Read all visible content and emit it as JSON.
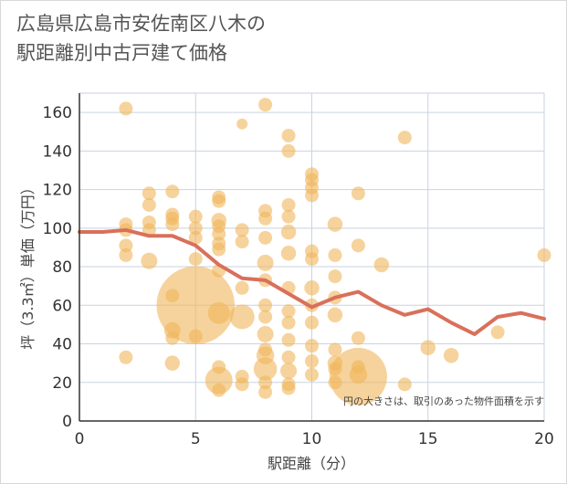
{
  "title_line1": "広島県広島市安佐南区八木の",
  "title_line2": "駅距離別中古戸建て価格",
  "colors": {
    "bubble": "#f0b55a",
    "line": "#d9705a",
    "grid": "#c9d3e0",
    "axis": "#333333"
  },
  "chart_data": {
    "type": "scatter",
    "title": "広島県広島市安佐南区八木の駅距離別中古戸建て価格",
    "xlabel": "駅距離（分）",
    "ylabel": "坪（3.3㎡）単価（万円）",
    "xlim": [
      0,
      20
    ],
    "ylim": [
      0,
      170
    ],
    "xticks": [
      0,
      5,
      10,
      15,
      20
    ],
    "yticks": [
      0,
      20,
      40,
      60,
      80,
      100,
      120,
      140,
      160
    ],
    "grid": true,
    "note": "円の大きさは、取引のあった物件面積を示す",
    "series": [
      {
        "kind": "bubble",
        "points": [
          {
            "x": 2,
            "y": 162,
            "s": 1
          },
          {
            "x": 2,
            "y": 102,
            "s": 1
          },
          {
            "x": 2,
            "y": 99,
            "s": 1
          },
          {
            "x": 2,
            "y": 91,
            "s": 1
          },
          {
            "x": 2,
            "y": 86,
            "s": 1
          },
          {
            "x": 2,
            "y": 33,
            "s": 1
          },
          {
            "x": 3,
            "y": 118,
            "s": 1
          },
          {
            "x": 3,
            "y": 112,
            "s": 1
          },
          {
            "x": 3,
            "y": 103,
            "s": 1
          },
          {
            "x": 3,
            "y": 99,
            "s": 1
          },
          {
            "x": 3,
            "y": 83,
            "s": 1.2
          },
          {
            "x": 4,
            "y": 119,
            "s": 1
          },
          {
            "x": 4,
            "y": 107,
            "s": 1
          },
          {
            "x": 4,
            "y": 105,
            "s": 1
          },
          {
            "x": 4,
            "y": 102,
            "s": 1
          },
          {
            "x": 4,
            "y": 65,
            "s": 1
          },
          {
            "x": 4,
            "y": 47,
            "s": 1.2
          },
          {
            "x": 4,
            "y": 43,
            "s": 1
          },
          {
            "x": 4,
            "y": 30,
            "s": 1.1
          },
          {
            "x": 5,
            "y": 106,
            "s": 1
          },
          {
            "x": 5,
            "y": 100,
            "s": 1
          },
          {
            "x": 5,
            "y": 95,
            "s": 1
          },
          {
            "x": 5,
            "y": 84,
            "s": 1
          },
          {
            "x": 5,
            "y": 60,
            "s": 5.7
          },
          {
            "x": 5,
            "y": 44,
            "s": 1
          },
          {
            "x": 6,
            "y": 116,
            "s": 1
          },
          {
            "x": 6,
            "y": 114,
            "s": 1
          },
          {
            "x": 6,
            "y": 104,
            "s": 1.1
          },
          {
            "x": 6,
            "y": 101,
            "s": 1
          },
          {
            "x": 6,
            "y": 97,
            "s": 1
          },
          {
            "x": 6,
            "y": 92,
            "s": 1
          },
          {
            "x": 6,
            "y": 89,
            "s": 1
          },
          {
            "x": 6,
            "y": 78,
            "s": 1
          },
          {
            "x": 6,
            "y": 56,
            "s": 1.6
          },
          {
            "x": 6,
            "y": 28,
            "s": 1
          },
          {
            "x": 6,
            "y": 21,
            "s": 2
          },
          {
            "x": 6,
            "y": 16,
            "s": 1
          },
          {
            "x": 7,
            "y": 154,
            "s": 0.8
          },
          {
            "x": 7,
            "y": 99,
            "s": 1
          },
          {
            "x": 7,
            "y": 93,
            "s": 1
          },
          {
            "x": 7,
            "y": 69,
            "s": 1
          },
          {
            "x": 7,
            "y": 54,
            "s": 1.8
          },
          {
            "x": 7,
            "y": 23,
            "s": 1
          },
          {
            "x": 7,
            "y": 19,
            "s": 1
          },
          {
            "x": 8,
            "y": 164,
            "s": 1
          },
          {
            "x": 8,
            "y": 109,
            "s": 1
          },
          {
            "x": 8,
            "y": 105,
            "s": 1
          },
          {
            "x": 8,
            "y": 95,
            "s": 1
          },
          {
            "x": 8,
            "y": 82,
            "s": 1.2
          },
          {
            "x": 8,
            "y": 73,
            "s": 1
          },
          {
            "x": 8,
            "y": 60,
            "s": 1
          },
          {
            "x": 8,
            "y": 54,
            "s": 1
          },
          {
            "x": 8,
            "y": 45,
            "s": 1.2
          },
          {
            "x": 8,
            "y": 37,
            "s": 1
          },
          {
            "x": 8,
            "y": 34,
            "s": 1.3
          },
          {
            "x": 8,
            "y": 27,
            "s": 1.7
          },
          {
            "x": 8,
            "y": 20,
            "s": 1
          },
          {
            "x": 8,
            "y": 15,
            "s": 1
          },
          {
            "x": 9,
            "y": 148,
            "s": 1
          },
          {
            "x": 9,
            "y": 140,
            "s": 1
          },
          {
            "x": 9,
            "y": 112,
            "s": 1
          },
          {
            "x": 9,
            "y": 106,
            "s": 1
          },
          {
            "x": 9,
            "y": 98,
            "s": 1.1
          },
          {
            "x": 9,
            "y": 87,
            "s": 1.1
          },
          {
            "x": 9,
            "y": 69,
            "s": 1
          },
          {
            "x": 9,
            "y": 57,
            "s": 1
          },
          {
            "x": 9,
            "y": 51,
            "s": 1
          },
          {
            "x": 9,
            "y": 42,
            "s": 1
          },
          {
            "x": 9,
            "y": 33,
            "s": 1
          },
          {
            "x": 9,
            "y": 26,
            "s": 1.2
          },
          {
            "x": 9,
            "y": 19,
            "s": 1
          },
          {
            "x": 9,
            "y": 17,
            "s": 1
          },
          {
            "x": 10,
            "y": 128,
            "s": 1
          },
          {
            "x": 10,
            "y": 125,
            "s": 1
          },
          {
            "x": 10,
            "y": 121,
            "s": 1
          },
          {
            "x": 10,
            "y": 117,
            "s": 1
          },
          {
            "x": 10,
            "y": 88,
            "s": 1
          },
          {
            "x": 10,
            "y": 84,
            "s": 1
          },
          {
            "x": 10,
            "y": 69,
            "s": 1.1
          },
          {
            "x": 10,
            "y": 60,
            "s": 1
          },
          {
            "x": 10,
            "y": 51,
            "s": 1
          },
          {
            "x": 10,
            "y": 39,
            "s": 1
          },
          {
            "x": 10,
            "y": 31,
            "s": 1
          },
          {
            "x": 10,
            "y": 24,
            "s": 1
          },
          {
            "x": 11,
            "y": 102,
            "s": 1.1
          },
          {
            "x": 11,
            "y": 86,
            "s": 1
          },
          {
            "x": 11,
            "y": 75,
            "s": 1
          },
          {
            "x": 11,
            "y": 64,
            "s": 1
          },
          {
            "x": 11,
            "y": 55,
            "s": 1.1
          },
          {
            "x": 11,
            "y": 37,
            "s": 1
          },
          {
            "x": 11,
            "y": 30,
            "s": 1.1
          },
          {
            "x": 11,
            "y": 27,
            "s": 1
          },
          {
            "x": 11,
            "y": 20,
            "s": 1
          },
          {
            "x": 12,
            "y": 118,
            "s": 1
          },
          {
            "x": 12,
            "y": 91,
            "s": 1
          },
          {
            "x": 12,
            "y": 43,
            "s": 1
          },
          {
            "x": 12,
            "y": 28,
            "s": 1
          },
          {
            "x": 12,
            "y": 24,
            "s": 1.3
          },
          {
            "x": 12,
            "y": 23,
            "s": 4.2
          },
          {
            "x": 13,
            "y": 81,
            "s": 1.1
          },
          {
            "x": 14,
            "y": 147,
            "s": 1
          },
          {
            "x": 14,
            "y": 19,
            "s": 1
          },
          {
            "x": 15,
            "y": 38,
            "s": 1.1
          },
          {
            "x": 16,
            "y": 34,
            "s": 1.1
          },
          {
            "x": 18,
            "y": 46,
            "s": 1
          },
          {
            "x": 20,
            "y": 86,
            "s": 1
          }
        ]
      },
      {
        "kind": "line",
        "x": [
          0,
          1,
          2,
          3,
          4,
          5,
          6,
          7,
          8,
          9,
          10,
          11,
          12,
          13,
          14,
          15,
          16,
          17,
          18,
          19,
          20
        ],
        "y": [
          98,
          98,
          99,
          96,
          96,
          91,
          81,
          74,
          73,
          66,
          59,
          64,
          67,
          60,
          55,
          58,
          51,
          45,
          54,
          56,
          53
        ]
      }
    ]
  }
}
